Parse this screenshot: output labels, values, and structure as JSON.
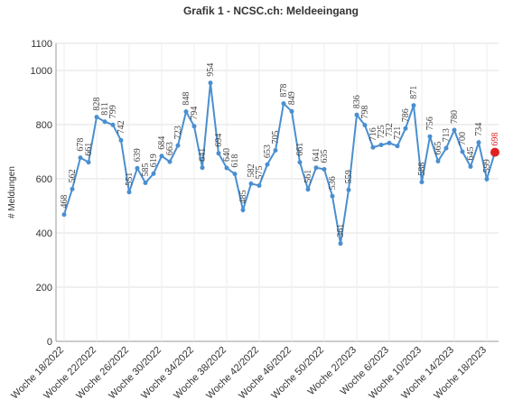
{
  "chart_data": {
    "type": "line",
    "title": "Grafik 1 - NCSC.ch: Meldeeingang",
    "ylabel": "# Meldungen",
    "categories": [
      "Woche 18/2022",
      null,
      null,
      null,
      "Woche 22/2022",
      null,
      null,
      null,
      "Woche 26/2022",
      null,
      null,
      null,
      "Woche 30/2022",
      null,
      null,
      null,
      "Woche 34/2022",
      null,
      null,
      null,
      "Woche 38/2022",
      null,
      null,
      null,
      "Woche 42/2022",
      null,
      null,
      null,
      "Woche 46/2022",
      null,
      null,
      null,
      "Woche 50/2022",
      null,
      null,
      null,
      "Woche 2/2023",
      null,
      null,
      null,
      "Woche 6/2023",
      null,
      null,
      null,
      "Woche 10/2023",
      null,
      null,
      null,
      "Woche 14/2023",
      null,
      null,
      null,
      "Woche 18/2023",
      null
    ],
    "series": [
      {
        "color": "#4a8fd0",
        "highlight_color": "#e02020",
        "values": [
          468,
          562,
          678,
          661,
          828,
          811,
          799,
          742,
          551,
          639,
          585,
          619,
          684,
          663,
          723,
          848,
          794,
          641,
          954,
          694,
          640,
          618,
          485,
          582,
          575,
          653,
          705,
          878,
          849,
          661,
          561,
          641,
          635,
          536,
          361,
          559,
          836,
          798,
          716,
          725,
          732,
          721,
          786,
          871,
          588,
          756,
          665,
          713,
          780,
          700,
          645,
          734,
          599,
          698
        ]
      }
    ],
    "ylim": [
      0,
      1100
    ],
    "yticks": [
      0,
      200,
      400,
      600,
      800,
      1000,
      1100
    ],
    "grid": true
  }
}
